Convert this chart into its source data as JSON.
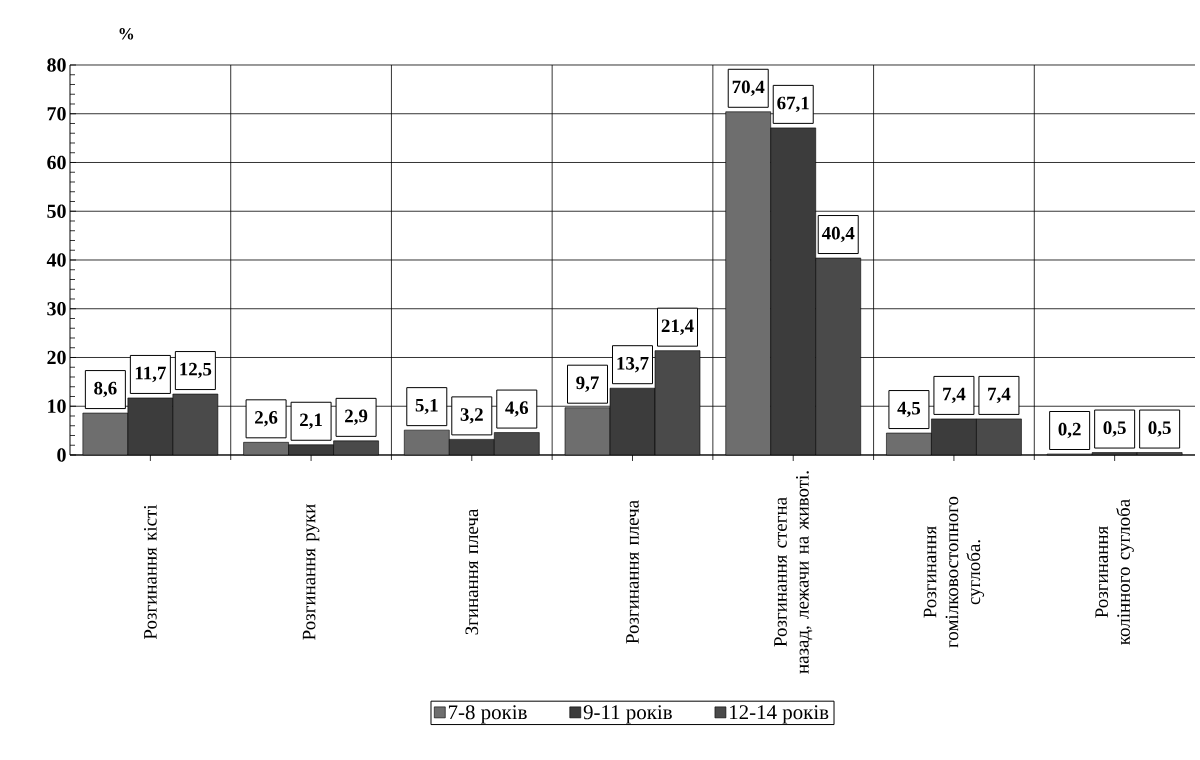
{
  "chart_data": {
    "type": "bar",
    "ylabel": "%",
    "categories": [
      "Розгинання кісті",
      "Розгинання руки",
      "Згинання плеча",
      "Розгинання плеча",
      "Розгинання стегна назад, лежачи на животі.",
      "Розгинання гомілковостопного суглоба.",
      "Розгинання колінного суглоба"
    ],
    "series": [
      {
        "name": "7-8 років",
        "color": "#6e6e6e",
        "values": [
          8.6,
          2.6,
          5.1,
          9.7,
          70.4,
          4.5,
          0.2
        ],
        "value_labels": [
          "8,6",
          "2,6",
          "5,1",
          "9,7",
          "70,4",
          "4,5",
          "0,2"
        ]
      },
      {
        "name": "9-11 років",
        "color": "#3c3c3c",
        "values": [
          11.7,
          2.1,
          3.2,
          13.7,
          67.1,
          7.4,
          0.5
        ],
        "value_labels": [
          "11,7",
          "2,1",
          "3,2",
          "13,7",
          "67,1",
          "7,4",
          "0,5"
        ]
      },
      {
        "name": "12-14 років",
        "color": "#4a4a4a",
        "values": [
          12.5,
          2.9,
          4.6,
          21.4,
          40.4,
          7.4,
          0.5
        ],
        "value_labels": [
          "12,5",
          "2,9",
          "4,6",
          "21,4",
          "40,4",
          "7,4",
          "0,5"
        ]
      }
    ],
    "ylim": [
      0,
      80
    ],
    "yticks": [
      0,
      10,
      20,
      30,
      40,
      50,
      60,
      70,
      80
    ],
    "grid": true,
    "legend": "bottom"
  }
}
